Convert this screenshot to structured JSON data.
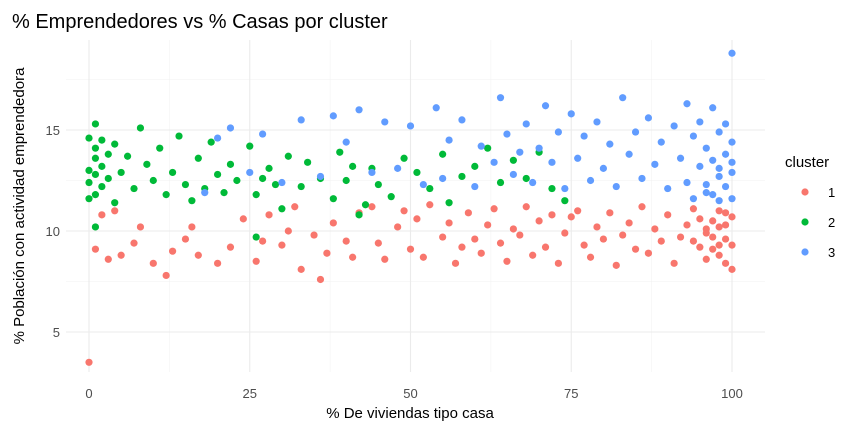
{
  "chart_data": {
    "type": "scatter",
    "title": "% Emprendedores vs % Casas por cluster",
    "xlabel": "% De viviendas tipo casa",
    "ylabel": "% Población con actividad emprendedora",
    "xlim": [
      -3.5,
      103.5
    ],
    "ylim": [
      3,
      19.5
    ],
    "xticks": [
      0,
      25,
      50,
      75,
      100
    ],
    "yticks": [
      5,
      10,
      15
    ],
    "grid": true,
    "legend": {
      "title": "cluster",
      "position": "right",
      "entries": [
        {
          "label": "1",
          "color": "#F8766D"
        },
        {
          "label": "2",
          "color": "#00BA38"
        },
        {
          "label": "3",
          "color": "#619CFF"
        }
      ]
    },
    "series": [
      {
        "name": "1",
        "color": "#F8766D",
        "points": [
          [
            0,
            3.5
          ],
          [
            2,
            10.8
          ],
          [
            1,
            9.1
          ],
          [
            3,
            8.6
          ],
          [
            5,
            8.8
          ],
          [
            4,
            11
          ],
          [
            7,
            9.4
          ],
          [
            8,
            10.2
          ],
          [
            10,
            8.4
          ],
          [
            12,
            7.8
          ],
          [
            13,
            9
          ],
          [
            15,
            9.6
          ],
          [
            16,
            10.2
          ],
          [
            17,
            8.8
          ],
          [
            20,
            8.4
          ],
          [
            22,
            9.2
          ],
          [
            24,
            10.6
          ],
          [
            26,
            8.5
          ],
          [
            27,
            9.5
          ],
          [
            28,
            10.8
          ],
          [
            30,
            9.3
          ],
          [
            31,
            10
          ],
          [
            32,
            11.2
          ],
          [
            33,
            8.1
          ],
          [
            35,
            9.8
          ],
          [
            36,
            7.6
          ],
          [
            37,
            8.9
          ],
          [
            38,
            10.4
          ],
          [
            40,
            9.5
          ],
          [
            41,
            8.7
          ],
          [
            42,
            10.9
          ],
          [
            44,
            11.2
          ],
          [
            45,
            9.4
          ],
          [
            46,
            8.6
          ],
          [
            48,
            10.2
          ],
          [
            49,
            11
          ],
          [
            50,
            9.1
          ],
          [
            51,
            10.6
          ],
          [
            52,
            8.7
          ],
          [
            53,
            11.3
          ],
          [
            55,
            9.7
          ],
          [
            56,
            10.4
          ],
          [
            57,
            8.4
          ],
          [
            58,
            9.2
          ],
          [
            59,
            10.9
          ],
          [
            60,
            9.6
          ],
          [
            61,
            8.9
          ],
          [
            62,
            10.3
          ],
          [
            63,
            11.1
          ],
          [
            64,
            9.4
          ],
          [
            65,
            8.5
          ],
          [
            66,
            10.1
          ],
          [
            67,
            9.8
          ],
          [
            68,
            11.2
          ],
          [
            69,
            8.8
          ],
          [
            70,
            10.5
          ],
          [
            71,
            9.2
          ],
          [
            72,
            10.8
          ],
          [
            73,
            8.4
          ],
          [
            74,
            9.9
          ],
          [
            75,
            10.7
          ],
          [
            76,
            11
          ],
          [
            77,
            9.3
          ],
          [
            78,
            8.7
          ],
          [
            79,
            10.2
          ],
          [
            80,
            9.6
          ],
          [
            81,
            10.9
          ],
          [
            82,
            8.3
          ],
          [
            83,
            9.8
          ],
          [
            84,
            10.4
          ],
          [
            85,
            9.1
          ],
          [
            86,
            11.2
          ],
          [
            87,
            8.9
          ],
          [
            88,
            10.1
          ],
          [
            89,
            9.5
          ],
          [
            90,
            10.8
          ],
          [
            91,
            8.4
          ],
          [
            92,
            9.7
          ],
          [
            93,
            10.3
          ],
          [
            94,
            11.1
          ],
          [
            95,
            9.2
          ],
          [
            95,
            10.6
          ],
          [
            96,
            8.6
          ],
          [
            96,
            9.9
          ],
          [
            97,
            10.5
          ],
          [
            97,
            9.1
          ],
          [
            98,
            11
          ],
          [
            98,
            8.8
          ],
          [
            98,
            10.2
          ],
          [
            99,
            9.6
          ],
          [
            99,
            10.9
          ],
          [
            99,
            8.4
          ],
          [
            100,
            9.3
          ],
          [
            100,
            10.7
          ],
          [
            100,
            8.1
          ],
          [
            94,
            9.5
          ],
          [
            96,
            10.1
          ],
          [
            97,
            9.7
          ],
          [
            98,
            9.3
          ],
          [
            99,
            10.3
          ]
        ]
      },
      {
        "name": "2",
        "color": "#00BA38",
        "points": [
          [
            0,
            13
          ],
          [
            0,
            14.6
          ],
          [
            0,
            12.4
          ],
          [
            0,
            11.6
          ],
          [
            1,
            13.6
          ],
          [
            1,
            12.8
          ],
          [
            1,
            15.3
          ],
          [
            1,
            14.1
          ],
          [
            1,
            11.8
          ],
          [
            2,
            13.2
          ],
          [
            2,
            12.2
          ],
          [
            2,
            14.5
          ],
          [
            1,
            10.2
          ],
          [
            3,
            13.8
          ],
          [
            3,
            12.6
          ],
          [
            4,
            11.4
          ],
          [
            4,
            14.3
          ],
          [
            5,
            12.9
          ],
          [
            6,
            13.7
          ],
          [
            7,
            12.1
          ],
          [
            8,
            15.1
          ],
          [
            9,
            13.3
          ],
          [
            10,
            12.5
          ],
          [
            11,
            14.1
          ],
          [
            12,
            11.8
          ],
          [
            13,
            12.9
          ],
          [
            14,
            14.7
          ],
          [
            15,
            12.3
          ],
          [
            16,
            11.5
          ],
          [
            17,
            13.6
          ],
          [
            18,
            12.1
          ],
          [
            19,
            14.4
          ],
          [
            20,
            12.8
          ],
          [
            21,
            11.9
          ],
          [
            22,
            13.3
          ],
          [
            23,
            12.5
          ],
          [
            25,
            14.2
          ],
          [
            26,
            11.8
          ],
          [
            27,
            12.6
          ],
          [
            28,
            13.1
          ],
          [
            29,
            12.3
          ],
          [
            30,
            11.1
          ],
          [
            31,
            13.7
          ],
          [
            33,
            12.2
          ],
          [
            34,
            13.4
          ],
          [
            36,
            12.6
          ],
          [
            38,
            11.6
          ],
          [
            39,
            13.9
          ],
          [
            40,
            12.5
          ],
          [
            41,
            13.2
          ],
          [
            42,
            10.8
          ],
          [
            44,
            13.1
          ],
          [
            45,
            12.3
          ],
          [
            47,
            11.7
          ],
          [
            49,
            13.6
          ],
          [
            51,
            12.9
          ],
          [
            53,
            12.1
          ],
          [
            55,
            13.8
          ],
          [
            56,
            11.4
          ],
          [
            58,
            12.7
          ],
          [
            60,
            13.2
          ],
          [
            62,
            14.1
          ],
          [
            64,
            12.4
          ],
          [
            66,
            13.5
          ],
          [
            68,
            12.6
          ],
          [
            70,
            13.9
          ],
          [
            72,
            12.1
          ],
          [
            74,
            11.5
          ],
          [
            26,
            9.7
          ],
          [
            43,
            11.3
          ]
        ]
      },
      {
        "name": "3",
        "color": "#619CFF",
        "points": [
          [
            100,
            18.8
          ],
          [
            18,
            11.9
          ],
          [
            20,
            14.6
          ],
          [
            22,
            15.1
          ],
          [
            25,
            12.9
          ],
          [
            27,
            14.8
          ],
          [
            30,
            12.4
          ],
          [
            33,
            15.5
          ],
          [
            36,
            12.7
          ],
          [
            38,
            15.7
          ],
          [
            40,
            14.4
          ],
          [
            42,
            16
          ],
          [
            44,
            12.9
          ],
          [
            46,
            15.4
          ],
          [
            48,
            13.1
          ],
          [
            50,
            15.2
          ],
          [
            52,
            12.3
          ],
          [
            54,
            16.1
          ],
          [
            55,
            12.6
          ],
          [
            56,
            14.5
          ],
          [
            58,
            15.5
          ],
          [
            60,
            12.2
          ],
          [
            61,
            14.2
          ],
          [
            63,
            13.4
          ],
          [
            64,
            16.6
          ],
          [
            65,
            14.8
          ],
          [
            66,
            12.8
          ],
          [
            67,
            13.9
          ],
          [
            68,
            15.3
          ],
          [
            69,
            12.4
          ],
          [
            70,
            14.1
          ],
          [
            71,
            16.2
          ],
          [
            72,
            13.4
          ],
          [
            73,
            14.9
          ],
          [
            74,
            12.1
          ],
          [
            75,
            15.8
          ],
          [
            76,
            13.6
          ],
          [
            77,
            14.7
          ],
          [
            78,
            12.5
          ],
          [
            79,
            15.4
          ],
          [
            80,
            13.1
          ],
          [
            81,
            14.3
          ],
          [
            82,
            12.2
          ],
          [
            83,
            16.6
          ],
          [
            84,
            13.8
          ],
          [
            85,
            14.9
          ],
          [
            86,
            12.6
          ],
          [
            87,
            15.6
          ],
          [
            88,
            13.3
          ],
          [
            89,
            14.4
          ],
          [
            90,
            12.1
          ],
          [
            91,
            15.2
          ],
          [
            92,
            13.6
          ],
          [
            93,
            16.3
          ],
          [
            93,
            12.4
          ],
          [
            94,
            14.7
          ],
          [
            94,
            11.6
          ],
          [
            95,
            13.2
          ],
          [
            95,
            15.4
          ],
          [
            96,
            12.3
          ],
          [
            96,
            14.1
          ],
          [
            97,
            11.8
          ],
          [
            97,
            13.5
          ],
          [
            97,
            16.1
          ],
          [
            98,
            12.7
          ],
          [
            98,
            14.9
          ],
          [
            98,
            11.5
          ],
          [
            99,
            13.8
          ],
          [
            99,
            12.2
          ],
          [
            99,
            15.3
          ],
          [
            100,
            12.9
          ],
          [
            100,
            14.4
          ],
          [
            100,
            11.6
          ],
          [
            100,
            13.4
          ],
          [
            96,
            11.9
          ],
          [
            98,
            13.1
          ]
        ]
      }
    ]
  }
}
